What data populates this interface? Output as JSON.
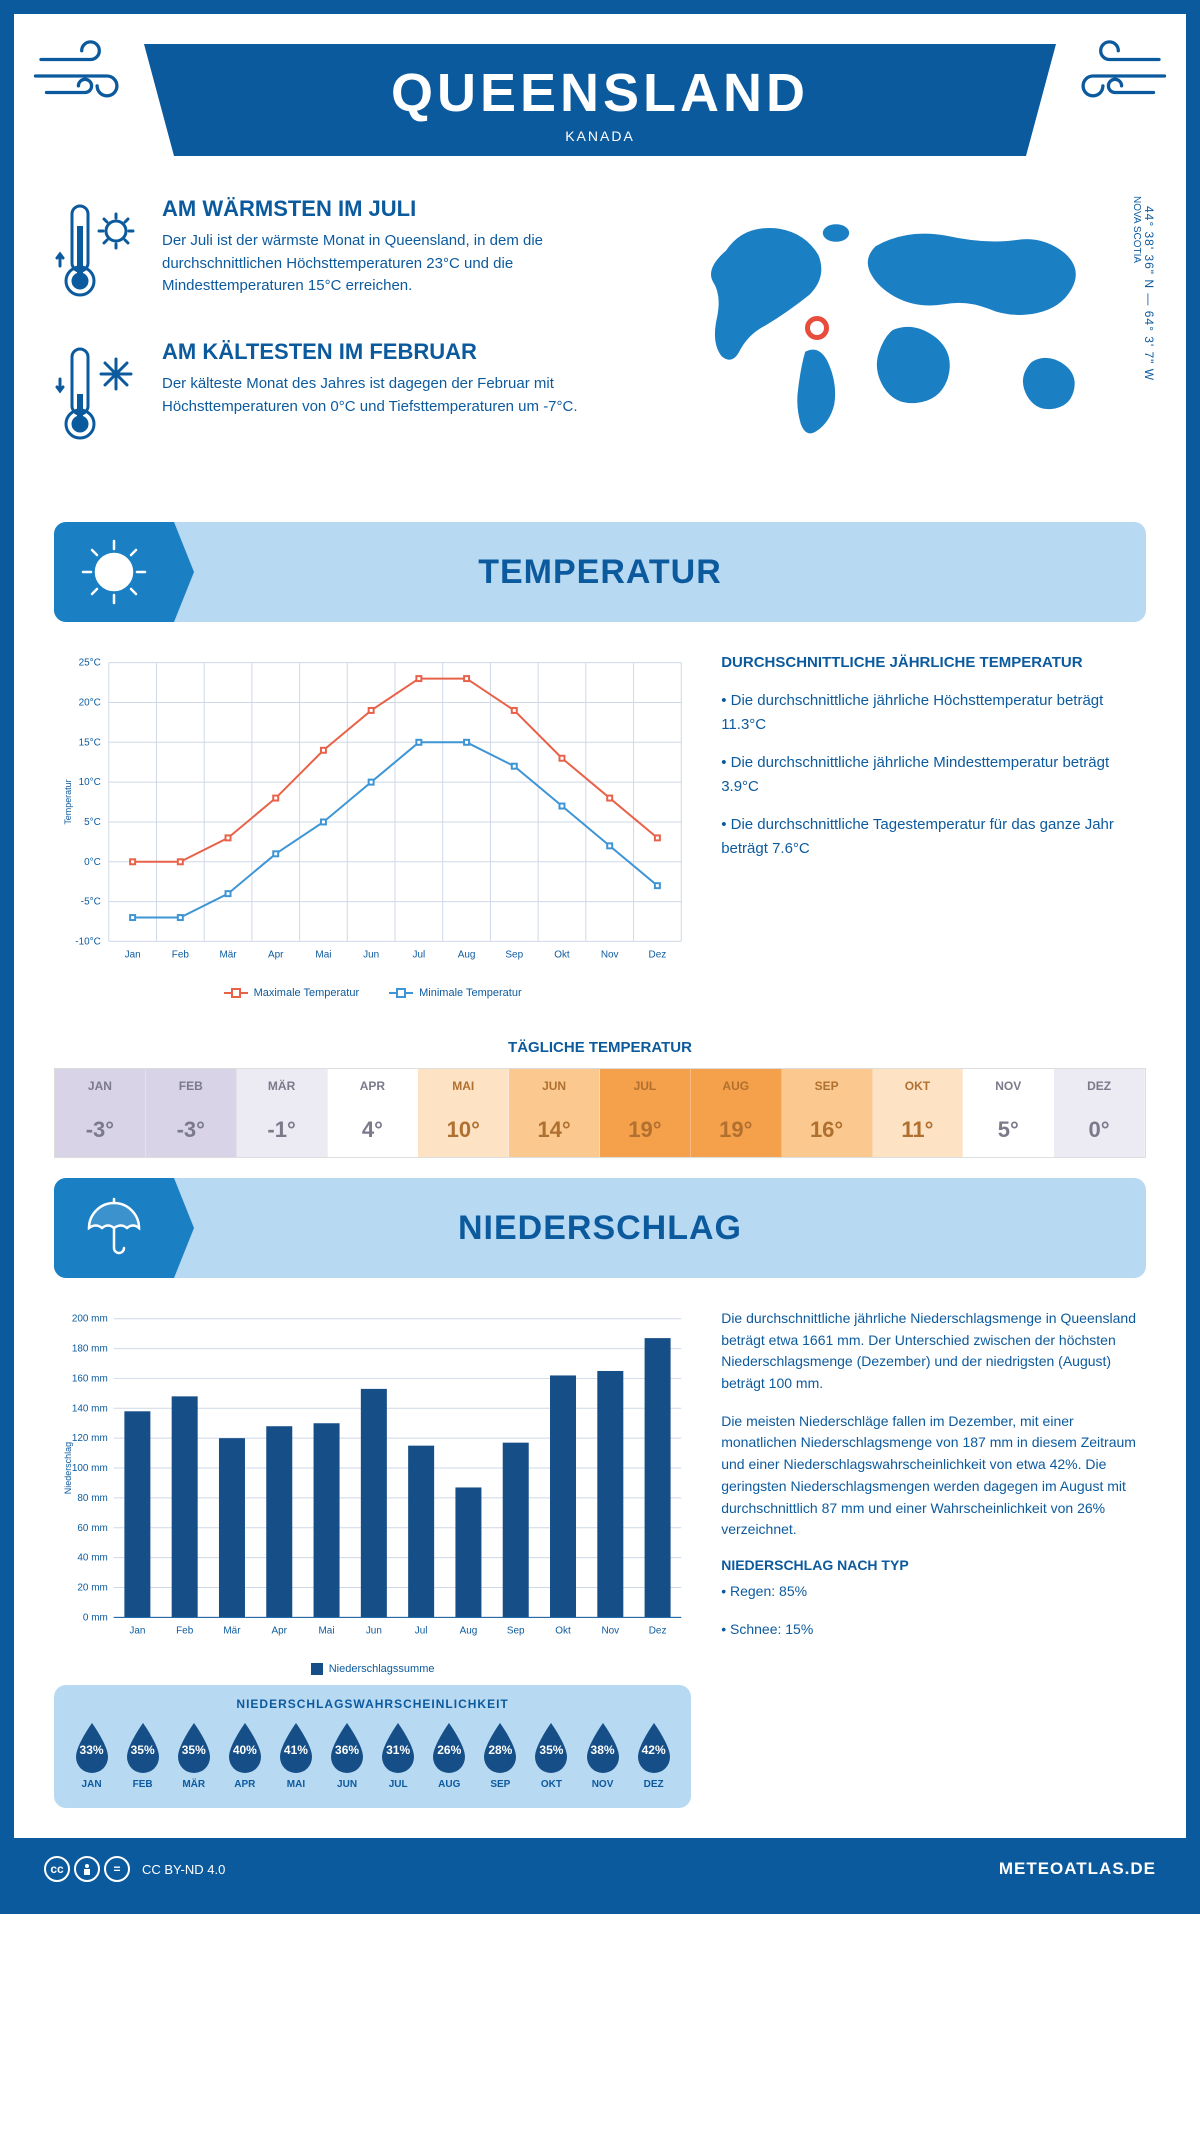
{
  "header": {
    "title": "QUEENSLAND",
    "subtitle": "KANADA"
  },
  "coords": "44° 38' 36\" N — 64° 3' 7\" W",
  "region": "NOVA SCOTIA",
  "map_marker": {
    "left_pct": 30,
    "top_pct": 42
  },
  "facts": [
    {
      "title": "AM WÄRMSTEN IM JULI",
      "text": "Der Juli ist der wärmste Monat in Queensland, in dem die durchschnittlichen Höchsttemperaturen 23°C und die Mindesttemperaturen 15°C erreichen.",
      "icon": "thermo-hot"
    },
    {
      "title": "AM KÄLTESTEN IM FEBRUAR",
      "text": "Der kälteste Monat des Jahres ist dagegen der Februar mit Höchsttemperaturen von 0°C und Tiefsttemperaturen um -7°C.",
      "icon": "thermo-cold"
    }
  ],
  "sections": {
    "temperature": "TEMPERATUR",
    "precipitation": "NIEDERSCHLAG"
  },
  "colors": {
    "primary": "#0c5a9e",
    "secondary": "#1b7fc4",
    "light": "#b8d9f2",
    "max_line": "#e8624a",
    "min_line": "#3e95d6",
    "grid": "#cfd8e8",
    "bar": "#164f87"
  },
  "temperature_chart": {
    "type": "line",
    "months": [
      "Jan",
      "Feb",
      "Mär",
      "Apr",
      "Mai",
      "Jun",
      "Jul",
      "Aug",
      "Sep",
      "Okt",
      "Nov",
      "Dez"
    ],
    "max": [
      0,
      0,
      3,
      8,
      14,
      19,
      23,
      23,
      19,
      13,
      8,
      3
    ],
    "min": [
      -7,
      -7,
      -4,
      1,
      5,
      10,
      15,
      15,
      12,
      7,
      2,
      -3
    ],
    "ylim": [
      -10,
      25
    ],
    "ytick_step": 5,
    "yunit": "°C",
    "ylabel": "Temperatur",
    "legend_max": "Maximale Temperatur",
    "legend_min": "Minimale Temperatur",
    "line_width": 2,
    "marker_size": 5
  },
  "temp_side": {
    "title": "DURCHSCHNITTLICHE JÄHRLICHE TEMPERATUR",
    "bullets": [
      "• Die durchschnittliche jährliche Höchsttemperatur beträgt 11.3°C",
      "• Die durchschnittliche jährliche Mindesttemperatur beträgt 3.9°C",
      "• Die durchschnittliche Tagestemperatur für das ganze Jahr beträgt 7.6°C"
    ]
  },
  "daily_temp": {
    "title": "TÄGLICHE TEMPERATUR",
    "months": [
      "JAN",
      "FEB",
      "MÄR",
      "APR",
      "MAI",
      "JUN",
      "JUL",
      "AUG",
      "SEP",
      "OKT",
      "NOV",
      "DEZ"
    ],
    "values": [
      "-3°",
      "-3°",
      "-1°",
      "4°",
      "10°",
      "14°",
      "19°",
      "19°",
      "16°",
      "11°",
      "5°",
      "0°"
    ],
    "bg_colors": [
      "#d8d3e6",
      "#d8d3e6",
      "#eceaf3",
      "#ffffff",
      "#fde3c4",
      "#fbc98f",
      "#f5a04a",
      "#f5a04a",
      "#fbc98f",
      "#fde3c4",
      "#ffffff",
      "#eceaf3"
    ],
    "text_color": "#7a7a8a",
    "text_color_warm": "#b07030"
  },
  "precip_chart": {
    "type": "bar",
    "months": [
      "Jan",
      "Feb",
      "Mär",
      "Apr",
      "Mai",
      "Jun",
      "Jul",
      "Aug",
      "Sep",
      "Okt",
      "Nov",
      "Dez"
    ],
    "values": [
      138,
      148,
      120,
      128,
      130,
      153,
      115,
      87,
      117,
      162,
      165,
      187
    ],
    "ylim": [
      0,
      200
    ],
    "ytick_step": 20,
    "yunit": " mm",
    "ylabel": "Niederschlag",
    "legend": "Niederschlagssumme",
    "bar_width": 0.55
  },
  "precip_side": {
    "paras": [
      "Die durchschnittliche jährliche Niederschlagsmenge in Queensland beträgt etwa 1661 mm. Der Unterschied zwischen der höchsten Niederschlagsmenge (Dezember) und der niedrigsten (August) beträgt 100 mm.",
      "Die meisten Niederschläge fallen im Dezember, mit einer monatlichen Niederschlagsmenge von 187 mm in diesem Zeitraum und einer Niederschlagswahrscheinlichkeit von etwa 42%. Die geringsten Niederschlagsmengen werden dagegen im August mit durchschnittlich 87 mm und einer Wahrscheinlichkeit von 26% verzeichnet."
    ],
    "type_title": "NIEDERSCHLAG NACH TYP",
    "types": [
      "• Regen: 85%",
      "• Schnee: 15%"
    ]
  },
  "probability": {
    "title": "NIEDERSCHLAGSWAHRSCHEINLICHKEIT",
    "months": [
      "JAN",
      "FEB",
      "MÄR",
      "APR",
      "MAI",
      "JUN",
      "JUL",
      "AUG",
      "SEP",
      "OKT",
      "NOV",
      "DEZ"
    ],
    "values": [
      "33%",
      "35%",
      "35%",
      "40%",
      "41%",
      "36%",
      "31%",
      "26%",
      "28%",
      "35%",
      "38%",
      "42%"
    ]
  },
  "footer": {
    "license": "CC BY-ND 4.0",
    "brand": "METEOATLAS.DE"
  }
}
